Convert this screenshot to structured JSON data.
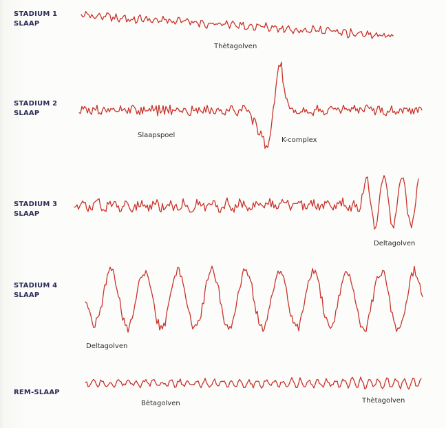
{
  "stages": [
    {
      "id": "stage1",
      "line1": "STADIUM 1",
      "line2": "SLAAP"
    },
    {
      "id": "stage2",
      "line1": "STADIUM 2",
      "line2": "SLAAP"
    },
    {
      "id": "stage3",
      "line1": "STADIUM 3",
      "line2": "SLAAP"
    },
    {
      "id": "stage4",
      "line1": "STADIUM 4",
      "line2": "SLAAP"
    },
    {
      "id": "rem",
      "line1": "REM-SLAAP",
      "line2": ""
    }
  ],
  "annotations": {
    "theta_1": "Thètagolven",
    "sleep_spindle": "Slaapspoel",
    "k_complex": "K-complex",
    "delta_3": "Deltagolven",
    "delta_4": "Deltagolven",
    "beta_rem": "Bètagolven",
    "theta_rem": "Thètagolven"
  },
  "colors": {
    "trace": "#c8322a",
    "label": "#2c2c5a",
    "annotation": "#2a2a2a"
  }
}
